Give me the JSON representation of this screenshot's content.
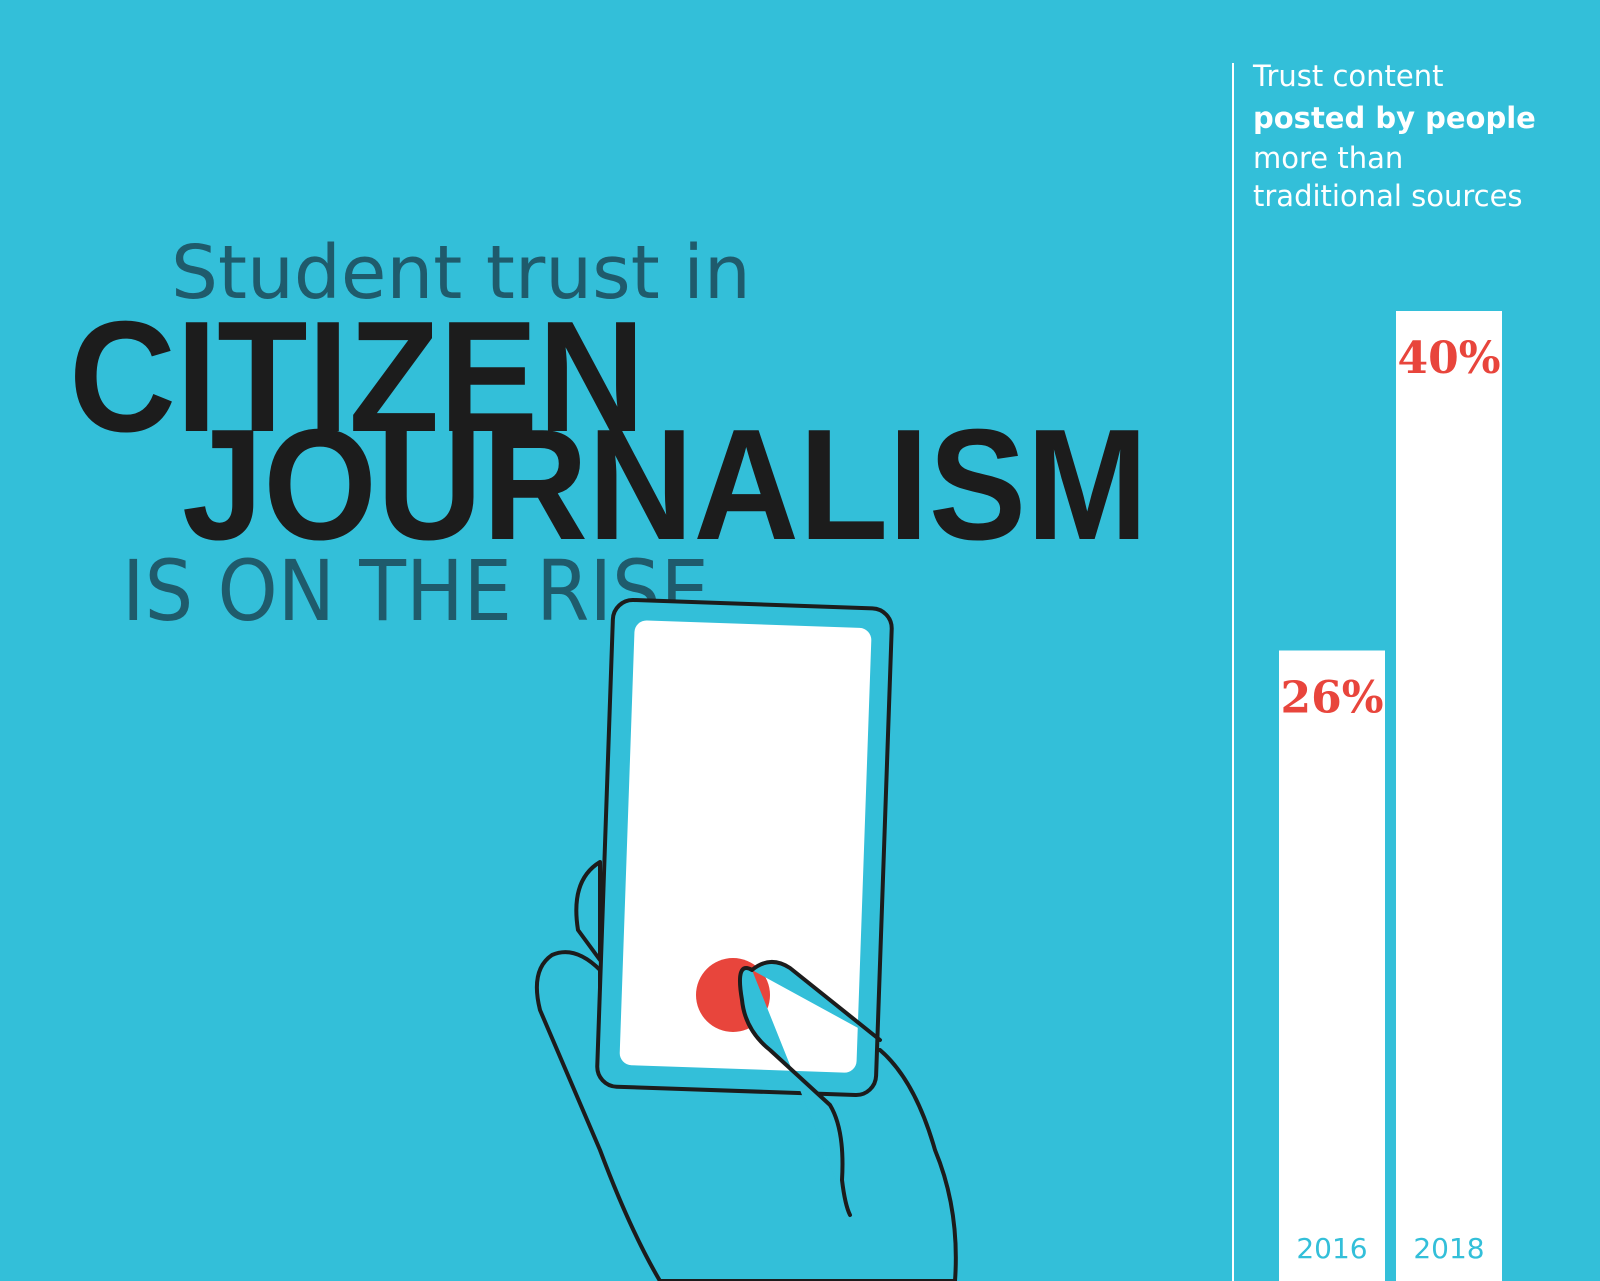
{
  "chart_data": {
    "type": "bar",
    "title": [
      "Student trust in",
      "CITIZEN",
      "JOURNALISM",
      "IS ON THE RISE"
    ],
    "subtitle": [
      "Trust content",
      "posted by people",
      "more than",
      "traditional sources"
    ],
    "categories": [
      "2016",
      "2018"
    ],
    "values": [
      26,
      40
    ],
    "value_labels": [
      "26%",
      "40%"
    ],
    "color": "#ffffff",
    "label_color": "#e8453c"
  }
}
